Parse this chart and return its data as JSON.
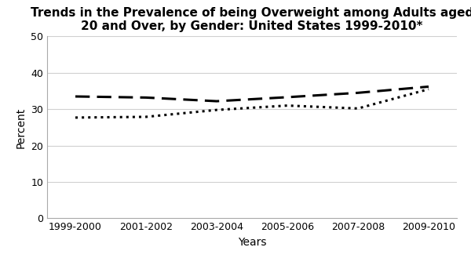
{
  "x_labels": [
    "1999-2000",
    "2001-2002",
    "2003-2004",
    "2005-2006",
    "2007-2008",
    "2009-2010"
  ],
  "x_values": [
    0,
    1,
    2,
    3,
    4,
    5
  ],
  "men_values": [
    27.7,
    27.9,
    29.8,
    31.0,
    30.2,
    35.5
  ],
  "women_values": [
    33.5,
    33.2,
    32.2,
    33.3,
    34.5,
    36.2
  ],
  "title": "Trends in the Prevalence of being Overweight among Adults aged\n20 and Over, by Gender: United States 1999-2010*",
  "xlabel": "Years",
  "ylabel": "Percent",
  "ylim": [
    0,
    50
  ],
  "yticks": [
    0,
    10,
    20,
    30,
    40,
    50
  ],
  "men_color": "#000000",
  "women_color": "#000000",
  "background_color": "#ffffff",
  "title_fontsize": 11,
  "axis_fontsize": 10,
  "tick_fontsize": 9,
  "legend_fontsize": 9
}
